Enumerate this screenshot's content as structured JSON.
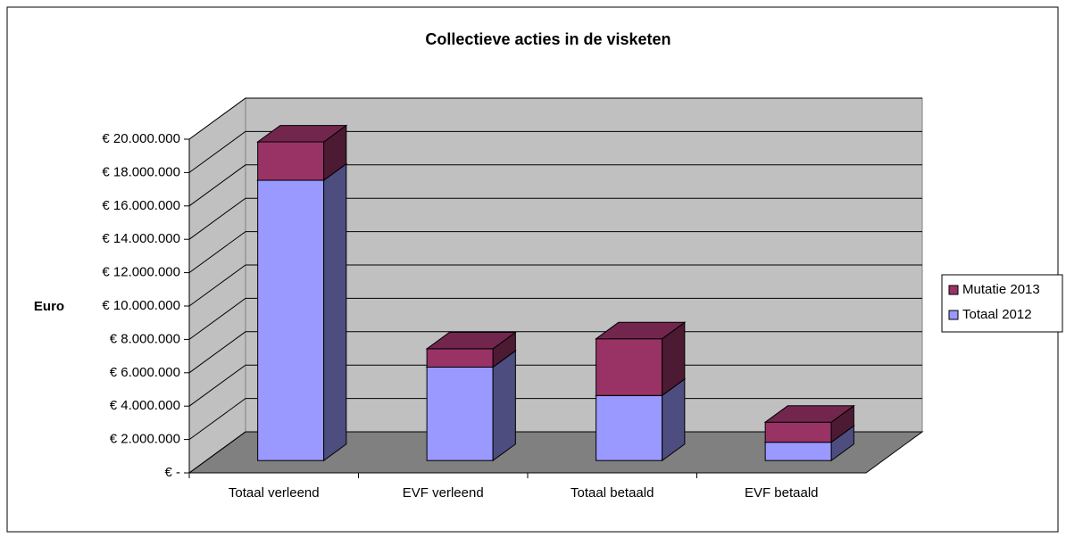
{
  "chart_data": {
    "type": "bar3d_stacked",
    "title": "Collectieve acties in de visketen",
    "y_label": "Euro",
    "categories": [
      "Totaal verleend",
      "EVF verleend",
      "Totaal betaald",
      "EVF betaald"
    ],
    "series": [
      {
        "name": "Totaal 2012",
        "color": "#9999ff",
        "values": [
          16800000,
          5600000,
          3900000,
          1100000
        ]
      },
      {
        "name": "Mutatie 2013",
        "color": "#993366",
        "values": [
          2300000,
          1100000,
          3400000,
          1200000
        ]
      }
    ],
    "ylim": [
      0,
      20000000
    ],
    "yticks": [
      {
        "value": 0,
        "label": "€ -"
      },
      {
        "value": 2000000,
        "label": "€ 2.000.000"
      },
      {
        "value": 4000000,
        "label": "€ 4.000.000"
      },
      {
        "value": 6000000,
        "label": "€ 6.000.000"
      },
      {
        "value": 8000000,
        "label": "€ 8.000.000"
      },
      {
        "value": 10000000,
        "label": "€ 10.000.000"
      },
      {
        "value": 12000000,
        "label": "€ 12.000.000"
      },
      {
        "value": 14000000,
        "label": "€ 14.000.000"
      },
      {
        "value": 16000000,
        "label": "€ 16.000.000"
      },
      {
        "value": 18000000,
        "label": "€ 18.000.000"
      },
      {
        "value": 20000000,
        "label": "€ 20.000.000"
      }
    ],
    "grid": true,
    "legend": "right"
  }
}
